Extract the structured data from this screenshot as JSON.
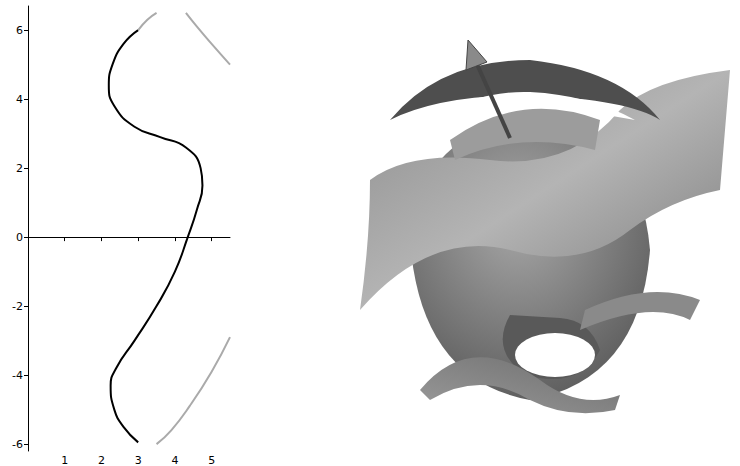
{
  "chart_data": {
    "type": "line",
    "xlim": [
      0,
      5.5
    ],
    "ylim": [
      -6.2,
      6.7
    ],
    "xticks": [
      1,
      2,
      3,
      4,
      5
    ],
    "yticks": [
      -6,
      -4,
      -2,
      0,
      2,
      4,
      6
    ],
    "grid": false,
    "series": [
      {
        "color": "#000000",
        "line_style": "solid",
        "x": [
          3.0,
          2.6,
          2.3,
          2.2,
          2.35,
          2.9,
          3.6,
          4.3,
          4.7,
          4.75,
          4.6,
          4.35,
          4.0,
          3.5,
          2.9,
          2.4,
          2.25,
          2.35,
          2.6,
          3.0
        ],
        "values": [
          6.0,
          5.6,
          5.0,
          4.4,
          3.8,
          3.2,
          2.9,
          2.6,
          2.0,
          1.5,
          0.8,
          0.0,
          -1.0,
          -2.0,
          -3.0,
          -3.8,
          -4.3,
          -5.0,
          -5.5,
          -5.95
        ]
      },
      {
        "color": "#aaaaaa",
        "line_style": "solid",
        "x": [
          3.0,
          3.25,
          3.5
        ],
        "values": [
          6.0,
          6.3,
          6.5
        ]
      },
      {
        "color": "#aaaaaa",
        "line_style": "solid",
        "x": [
          4.3,
          4.6,
          5.0,
          5.5
        ],
        "values": [
          6.5,
          6.1,
          5.6,
          5.0
        ]
      },
      {
        "color": "#aaaaaa",
        "line_style": "solid",
        "x": [
          3.5,
          3.9,
          4.4,
          5.0,
          5.5
        ],
        "values": [
          -6.0,
          -5.6,
          -4.9,
          -3.9,
          -2.9
        ]
      }
    ]
  }
}
